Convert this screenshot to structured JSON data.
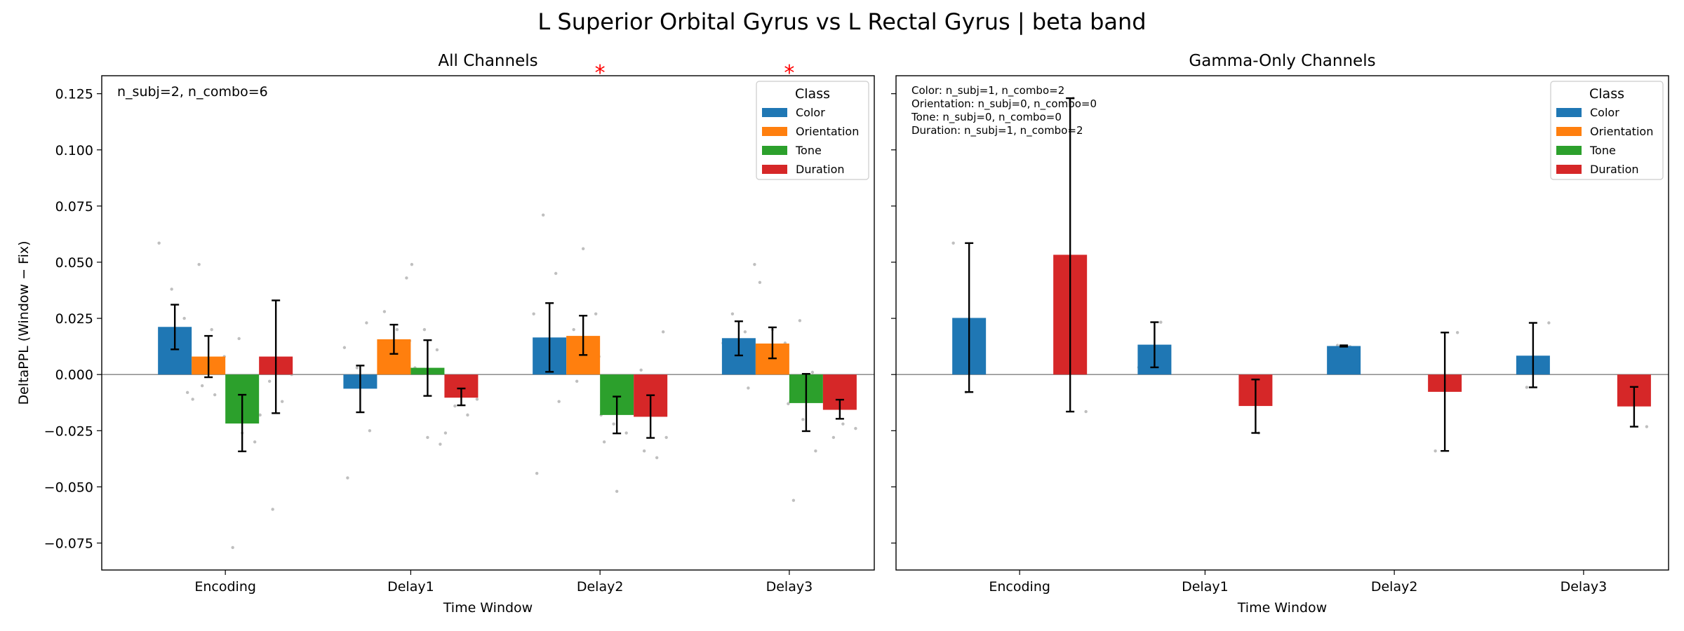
{
  "suptitle": "L Superior Orbital Gyrus vs L Rectal Gyrus  |  beta band",
  "colors": {
    "Color": "#1f77b4",
    "Orientation": "#ff7f0e",
    "Tone": "#2ca02c",
    "Duration": "#d62728",
    "significance": "#ff0000",
    "zero_line": "#808080",
    "points": "#a9a9a9"
  },
  "chart_data": [
    {
      "type": "bar",
      "title": "All Channels",
      "xlabel": "Time Window",
      "ylabel": "DeltaPPL (Window − Fix)",
      "categories": [
        "Encoding",
        "Delay1",
        "Delay2",
        "Delay3"
      ],
      "ylim": [
        -0.087,
        0.133
      ],
      "yticks": [
        -0.075,
        -0.05,
        -0.025,
        0.0,
        0.025,
        0.05,
        0.075,
        0.1,
        0.125
      ],
      "ytick_labels": [
        "−0.075",
        "−0.050",
        "−0.025",
        "0.000",
        "0.025",
        "0.050",
        "0.075",
        "0.100",
        "0.125"
      ],
      "legend_title": "Class",
      "legend_position": "upper right",
      "annotation": "n_subj=2, n_combo=6",
      "significance_marker": "*",
      "significant_categories": [
        "Delay2",
        "Delay3"
      ],
      "series": [
        {
          "name": "Color",
          "values": [
            0.0212,
            -0.0063,
            0.0165,
            0.0162
          ],
          "err_low": [
            0.0112,
            -0.0168,
            0.0012,
            0.0085
          ],
          "err_high": [
            0.0311,
            0.004,
            0.0318,
            0.0237
          ],
          "points": [
            [
              0.0585,
              0.038,
              0.025,
              0.012,
              0.003,
              -0.008
            ],
            [
              0.023,
              0.012,
              0.003,
              -0.025,
              -0.046,
              -0.005
            ],
            [
              0.071,
              0.045,
              0.027,
              0.01,
              -0.012,
              -0.044
            ],
            [
              0.049,
              0.027,
              0.019,
              0.014,
              0.006,
              -0.006
            ]
          ]
        },
        {
          "name": "Orientation",
          "values": [
            0.008,
            0.0157,
            0.0172,
            0.0138
          ],
          "err_low": [
            -0.0012,
            0.0092,
            0.0087,
            0.0072
          ],
          "err_high": [
            0.0172,
            0.0222,
            0.0262,
            0.021
          ],
          "points": [
            [
              0.049,
              0.02,
              0.008,
              -0.005,
              -0.009,
              -0.011
            ],
            [
              0.043,
              0.028,
              0.02,
              0.015,
              0.012,
              0.004
            ],
            [
              0.056,
              0.027,
              0.02,
              0.013,
              0.008,
              -0.003
            ],
            [
              0.041,
              0.02,
              0.014,
              0.01,
              0.004,
              -0.013
            ]
          ]
        },
        {
          "name": "Tone",
          "values": [
            -0.0218,
            0.003,
            -0.018,
            -0.0127
          ],
          "err_low": [
            -0.0342,
            -0.0095,
            -0.0262,
            -0.0252
          ],
          "err_high": [
            -0.009,
            0.0153,
            -0.0098,
            0.0003
          ],
          "points": [
            [
              0.016,
              -0.003,
              -0.02,
              -0.026,
              -0.03,
              -0.077
            ],
            [
              0.049,
              0.02,
              0.011,
              0.003,
              -0.028,
              -0.031
            ],
            [
              -0.008,
              -0.018,
              -0.022,
              -0.026,
              -0.03,
              -0.052
            ],
            [
              0.024,
              0.001,
              -0.012,
              -0.02,
              -0.034,
              -0.056
            ]
          ]
        },
        {
          "name": "Duration",
          "values": [
            0.008,
            -0.0103,
            -0.0188,
            -0.0157
          ],
          "err_low": [
            -0.0172,
            -0.0137,
            -0.0282,
            -0.0197
          ],
          "err_high": [
            0.033,
            -0.0062,
            -0.0092,
            -0.0112
          ],
          "points": [
            [
              0.003,
              0.0,
              -0.003,
              -0.012,
              -0.018,
              -0.06
            ],
            [
              -0.003,
              -0.008,
              -0.011,
              -0.014,
              -0.018,
              -0.026
            ],
            [
              0.019,
              0.002,
              -0.015,
              -0.028,
              -0.034,
              -0.037
            ],
            [
              -0.005,
              -0.009,
              -0.014,
              -0.022,
              -0.024,
              -0.028
            ]
          ]
        }
      ]
    },
    {
      "type": "bar",
      "title": "Gamma-Only Channels",
      "xlabel": "Time Window",
      "categories": [
        "Encoding",
        "Delay1",
        "Delay2",
        "Delay3"
      ],
      "ylim": [
        -0.087,
        0.133
      ],
      "legend_title": "Class",
      "legend_position": "upper right",
      "annotation_lines": [
        "Color: n_subj=1, n_combo=2",
        "Orientation: n_subj=0, n_combo=0",
        "Tone: n_subj=0, n_combo=0",
        "Duration: n_subj=1, n_combo=2"
      ],
      "series": [
        {
          "name": "Color",
          "values": [
            0.0252,
            0.0133,
            0.0127,
            0.0084
          ],
          "err_low": [
            -0.0078,
            0.0032,
            0.0124,
            -0.0057
          ],
          "err_high": [
            0.0585,
            0.0233,
            0.013,
            0.023
          ],
          "points": [
            [
              0.0585,
              -0.0078
            ],
            [
              0.0233,
              0.0032
            ],
            [
              0.013,
              0.0124
            ],
            [
              0.023,
              -0.0057
            ]
          ]
        },
        {
          "name": "Orientation",
          "values": [
            null,
            null,
            null,
            null
          ],
          "err_low": [
            null,
            null,
            null,
            null
          ],
          "err_high": [
            null,
            null,
            null,
            null
          ],
          "points": [
            [],
            [],
            [],
            []
          ]
        },
        {
          "name": "Tone",
          "values": [
            null,
            null,
            null,
            null
          ],
          "err_low": [
            null,
            null,
            null,
            null
          ],
          "err_high": [
            null,
            null,
            null,
            null
          ],
          "points": [
            [],
            [],
            [],
            []
          ]
        },
        {
          "name": "Duration",
          "values": [
            0.0533,
            -0.014,
            -0.0077,
            -0.0142
          ],
          "err_low": [
            -0.0165,
            -0.026,
            -0.034,
            -0.0232
          ],
          "err_high": [
            0.123,
            -0.0022,
            0.0187,
            -0.0055
          ],
          "points": [
            [
              0.123,
              -0.0165
            ],
            [
              -0.0022,
              -0.026
            ],
            [
              0.0187,
              -0.034
            ],
            [
              -0.0055,
              -0.0232
            ]
          ]
        }
      ]
    }
  ]
}
